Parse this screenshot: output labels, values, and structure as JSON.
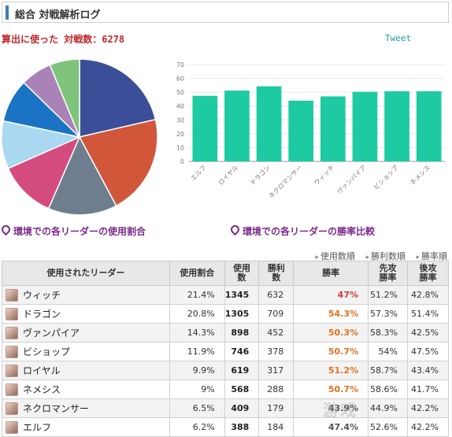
{
  "header": {
    "title": "総合 対戦解析ログ"
  },
  "battle_count_label": "算出に使った 対戦数：6278",
  "tweet_label": "Tweet",
  "captions": {
    "usage": "環境での各リーダーの使用割合",
    "winrate": "環境での各リーダーの勝率比較"
  },
  "sort_options": [
    "使用数順",
    "勝利数順",
    "勝率順"
  ],
  "table": {
    "headers": [
      "使用されたリーダー",
      "使用割合",
      "使用\n数",
      "勝利\n数",
      "勝率",
      "先攻\n勝率",
      "後攻\n勝率"
    ],
    "rows": [
      {
        "leader": "ウィッチ",
        "share": "21.4%",
        "used": "1345",
        "wins": "632",
        "rate": "47%",
        "first": "51.2%",
        "second": "42.8%",
        "rate_color": "#d23a3a"
      },
      {
        "leader": "ドラゴン",
        "share": "20.8%",
        "used": "1305",
        "wins": "709",
        "rate": "54.3%",
        "first": "57.3%",
        "second": "51.4%",
        "rate_color": "#e07020"
      },
      {
        "leader": "ヴァンパイア",
        "share": "14.3%",
        "used": "898",
        "wins": "452",
        "rate": "50.3%",
        "first": "58.3%",
        "second": "42.5%",
        "rate_color": "#e07020"
      },
      {
        "leader": "ビショップ",
        "share": "11.9%",
        "used": "746",
        "wins": "378",
        "rate": "50.7%",
        "first": "54%",
        "second": "47.5%",
        "rate_color": "#e07020"
      },
      {
        "leader": "ロイヤル",
        "share": "9.9%",
        "used": "619",
        "wins": "317",
        "rate": "51.2%",
        "first": "58.7%",
        "second": "43.4%",
        "rate_color": "#e07020"
      },
      {
        "leader": "ネメシス",
        "share": "9%",
        "used": "568",
        "wins": "288",
        "rate": "50.7%",
        "first": "58.6%",
        "second": "41.7%",
        "rate_color": "#e07020"
      },
      {
        "leader": "ネクロマンサー",
        "share": "6.5%",
        "used": "409",
        "wins": "179",
        "rate": "43.9%",
        "first": "44.9%",
        "second": "42.2%",
        "rate_color": "#555555"
      },
      {
        "leader": "エルフ",
        "share": "6.2%",
        "used": "388",
        "wins": "184",
        "rate": "47.4%",
        "first": "52.6%",
        "second": "42.2%",
        "rate_color": "#555555"
      }
    ]
  },
  "chart_data": [
    {
      "type": "pie",
      "categories": [
        "ウィッチ",
        "ドラゴン",
        "ヴァンパイア",
        "ビショップ",
        "ロイヤル",
        "ネメシス",
        "ネクロマンサー",
        "エルフ"
      ],
      "values": [
        21.4,
        20.8,
        14.3,
        11.9,
        9.9,
        9.0,
        6.5,
        6.2
      ],
      "colors": [
        "#3b4f98",
        "#d1563a",
        "#6f7e8e",
        "#d44c7d",
        "#a9d8f0",
        "#1a73c4",
        "#a982b8",
        "#7fc47a"
      ]
    },
    {
      "type": "bar",
      "categories": [
        "エルフ",
        "ロイヤル",
        "ドラゴン",
        "ネクロマンサー",
        "ウィッチ",
        "ヴァンパイア",
        "ビショップ",
        "ネメシス"
      ],
      "values": [
        47.4,
        51.2,
        54.3,
        43.9,
        47.0,
        50.3,
        50.7,
        50.7
      ],
      "ylim": [
        0,
        70
      ],
      "yticks": [
        "0",
        "10",
        "20",
        "30",
        "40",
        "50",
        "60",
        "70"
      ],
      "grid": true,
      "bar_color": "#1ecaa2"
    }
  ],
  "watermark": "游戏"
}
